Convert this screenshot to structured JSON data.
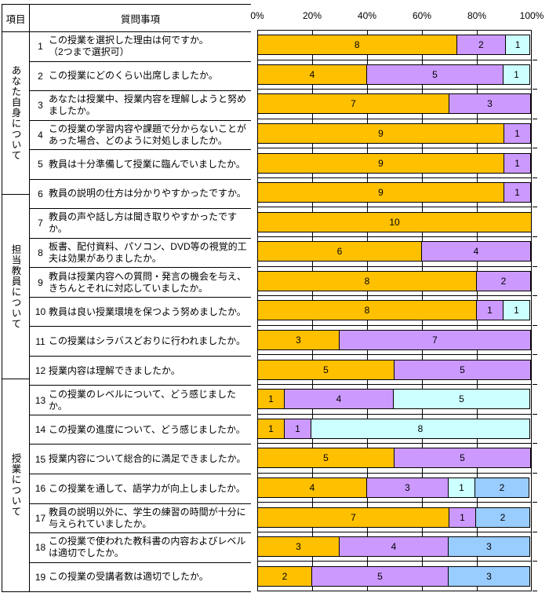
{
  "table": {
    "header": {
      "category_col": "項目",
      "question_col": "質問事項"
    },
    "sections": [
      {
        "label": "あなた自身について",
        "rows": 4
      },
      {
        "label": "担当教員について",
        "rows": 6
      },
      {
        "label": "授業について",
        "rows": 9
      }
    ],
    "questions": [
      {
        "no": "1",
        "text": "この授業を選択した理由は何ですか。\n（2つまで選択可）"
      },
      {
        "no": "2",
        "text": "この授業にどのくらい出席しましたか。"
      },
      {
        "no": "3",
        "text": "あなたは授業中、授業内容を理解しようと努めましたか。"
      },
      {
        "no": "4",
        "text": "この授業の学習内容や課題で分からないことがあった場合、どのように対処しましたか。"
      },
      {
        "no": "5",
        "text": "教員は十分準備して授業に臨んでいましたか。"
      },
      {
        "no": "6",
        "text": "教員の説明の仕方は分かりやすかったですか。"
      },
      {
        "no": "7",
        "text": "教員の声や話し方は聞き取りやすかったですか。"
      },
      {
        "no": "8",
        "text": "板書、配付資料、パソコン、DVD等の視覚的工夫は効果がありましたか。"
      },
      {
        "no": "9",
        "text": "教員は授業内容への質問・発言の機会を与え、きちんとそれに対応していましたか。"
      },
      {
        "no": "10",
        "text": "教員は良い授業環境を保つよう努めましたか。"
      },
      {
        "no": "11",
        "text": "この授業はシラバスどおりに行われましたか。"
      },
      {
        "no": "12",
        "text": "授業内容は理解できましたか。"
      },
      {
        "no": "13",
        "text": "この授業のレベルについて、どう感じましたか。"
      },
      {
        "no": "14",
        "text": "この授業の進度について、どう感じましたか。"
      },
      {
        "no": "15",
        "text": "授業内容について総合的に満足できましたか。"
      },
      {
        "no": "16",
        "text": "この授業を通して、語学力が向上しましたか。"
      },
      {
        "no": "17",
        "text": "教員の説明以外に、学生の練習の時間が十分に与えられていましたか。"
      },
      {
        "no": "18",
        "text": "この授業で使われた教科書の内容およびレベルは適切でしたか。"
      },
      {
        "no": "19",
        "text": "この授業の受講者数は適切でしたか。"
      }
    ]
  },
  "chart_data": {
    "type": "bar",
    "orientation": "horizontal",
    "stacked": true,
    "value_axis": {
      "position": "top",
      "ticks": [
        "0%",
        "20%",
        "40%",
        "60%",
        "80%",
        "100%"
      ],
      "range_percent": [
        0,
        100
      ],
      "gridlines": true
    },
    "palette": {
      "gold": "#FFC000",
      "purple": "#CC99FF",
      "cyan": "#CCFFFF",
      "blue": "#99CCFF"
    },
    "categories": [
      "1",
      "2",
      "3",
      "4",
      "5",
      "6",
      "7",
      "8",
      "9",
      "10",
      "11",
      "12",
      "13",
      "14",
      "15",
      "16",
      "17",
      "18",
      "19"
    ],
    "rows": [
      {
        "question_no": "1",
        "total": 11,
        "segments": [
          {
            "value": 8,
            "color": "gold"
          },
          {
            "value": 2,
            "color": "purple"
          },
          {
            "value": 1,
            "color": "cyan"
          }
        ]
      },
      {
        "question_no": "2",
        "total": 10,
        "segments": [
          {
            "value": 4,
            "color": "gold"
          },
          {
            "value": 5,
            "color": "purple"
          },
          {
            "value": 1,
            "color": "cyan"
          }
        ]
      },
      {
        "question_no": "3",
        "total": 10,
        "segments": [
          {
            "value": 7,
            "color": "gold"
          },
          {
            "value": 3,
            "color": "purple"
          }
        ]
      },
      {
        "question_no": "4",
        "total": 10,
        "segments": [
          {
            "value": 9,
            "color": "gold"
          },
          {
            "value": 1,
            "color": "purple"
          }
        ]
      },
      {
        "question_no": "5",
        "total": 10,
        "segments": [
          {
            "value": 9,
            "color": "gold"
          },
          {
            "value": 1,
            "color": "purple"
          }
        ]
      },
      {
        "question_no": "6",
        "total": 10,
        "segments": [
          {
            "value": 9,
            "color": "gold"
          },
          {
            "value": 1,
            "color": "purple"
          }
        ]
      },
      {
        "question_no": "7",
        "total": 10,
        "segments": [
          {
            "value": 10,
            "color": "gold"
          }
        ]
      },
      {
        "question_no": "8",
        "total": 10,
        "segments": [
          {
            "value": 6,
            "color": "gold"
          },
          {
            "value": 4,
            "color": "purple"
          }
        ]
      },
      {
        "question_no": "9",
        "total": 10,
        "segments": [
          {
            "value": 8,
            "color": "gold"
          },
          {
            "value": 2,
            "color": "purple"
          }
        ]
      },
      {
        "question_no": "10",
        "total": 10,
        "segments": [
          {
            "value": 8,
            "color": "gold"
          },
          {
            "value": 1,
            "color": "purple"
          },
          {
            "value": 1,
            "color": "cyan"
          }
        ]
      },
      {
        "question_no": "11",
        "total": 10,
        "segments": [
          {
            "value": 3,
            "color": "gold"
          },
          {
            "value": 7,
            "color": "purple"
          }
        ]
      },
      {
        "question_no": "12",
        "total": 10,
        "segments": [
          {
            "value": 5,
            "color": "gold"
          },
          {
            "value": 5,
            "color": "purple"
          }
        ]
      },
      {
        "question_no": "13",
        "total": 10,
        "segments": [
          {
            "value": 1,
            "color": "gold"
          },
          {
            "value": 4,
            "color": "purple"
          },
          {
            "value": 5,
            "color": "cyan"
          }
        ]
      },
      {
        "question_no": "14",
        "total": 10,
        "segments": [
          {
            "value": 1,
            "color": "gold"
          },
          {
            "value": 1,
            "color": "purple"
          },
          {
            "value": 8,
            "color": "cyan"
          }
        ]
      },
      {
        "question_no": "15",
        "total": 10,
        "segments": [
          {
            "value": 5,
            "color": "gold"
          },
          {
            "value": 5,
            "color": "purple"
          }
        ]
      },
      {
        "question_no": "16",
        "total": 10,
        "segments": [
          {
            "value": 4,
            "color": "gold"
          },
          {
            "value": 3,
            "color": "purple"
          },
          {
            "value": 1,
            "color": "cyan"
          },
          {
            "value": 2,
            "color": "blue"
          }
        ]
      },
      {
        "question_no": "17",
        "total": 10,
        "segments": [
          {
            "value": 7,
            "color": "gold"
          },
          {
            "value": 1,
            "color": "purple"
          },
          {
            "value": 2,
            "color": "blue"
          }
        ]
      },
      {
        "question_no": "18",
        "total": 10,
        "segments": [
          {
            "value": 3,
            "color": "gold"
          },
          {
            "value": 4,
            "color": "purple"
          },
          {
            "value": 3,
            "color": "blue"
          }
        ]
      },
      {
        "question_no": "19",
        "total": 10,
        "segments": [
          {
            "value": 2,
            "color": "gold"
          },
          {
            "value": 5,
            "color": "purple"
          },
          {
            "value": 3,
            "color": "blue"
          }
        ]
      }
    ]
  }
}
